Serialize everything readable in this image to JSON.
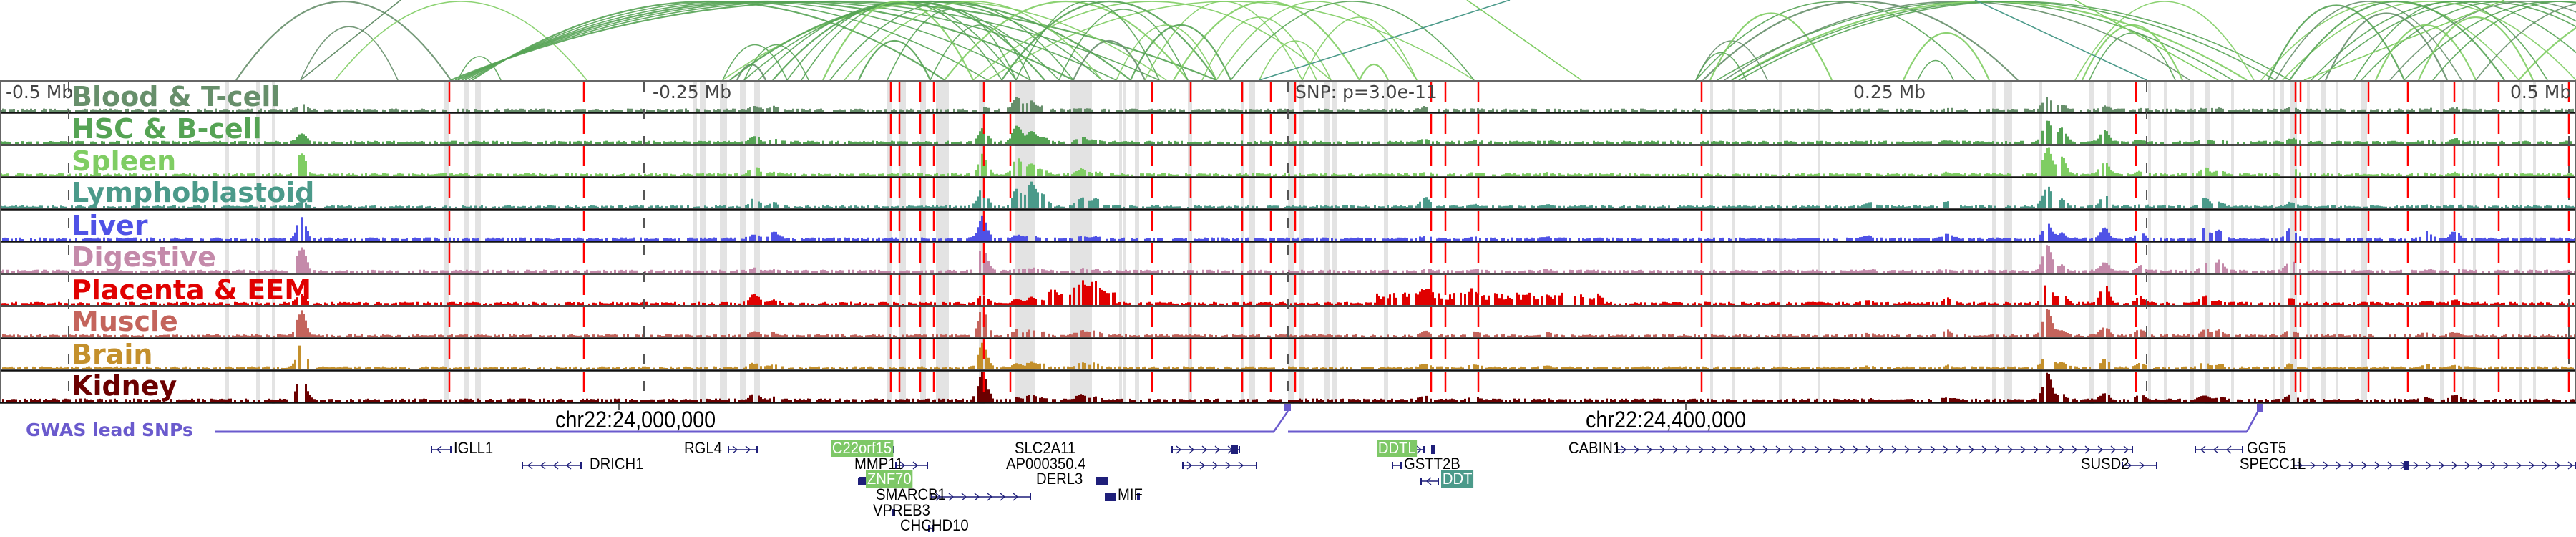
{
  "axis": {
    "left_label": "-0.5 Mb",
    "mid_left_label": "-0.25 Mb",
    "snp_label": "SNP: p=3.0e-11",
    "mid_right_label": "0.25 Mb",
    "right_label": "0.5 Mb"
  },
  "tracks": [
    {
      "label": "Blood & T-cell",
      "color": "#678f6b"
    },
    {
      "label": "HSC & B-cell",
      "color": "#55a354"
    },
    {
      "label": "Spleen",
      "color": "#7fcd63"
    },
    {
      "label": "Lymphoblastoid",
      "color": "#4b9a8a"
    },
    {
      "label": "Liver",
      "color": "#4f52e6"
    },
    {
      "label": "Digestive",
      "color": "#c48aaa"
    },
    {
      "label": "Placenta & EEM",
      "color": "#e00000"
    },
    {
      "label": "Muscle",
      "color": "#c4645c"
    },
    {
      "label": "Brain",
      "color": "#c4902c"
    },
    {
      "label": "Kidney",
      "color": "#6b0000"
    }
  ],
  "gwas": {
    "label": "GWAS lead SNPs",
    "color": "#6a5acd",
    "chr_left": "chr22:24,000,000",
    "chr_right": "chr22:24,400,000"
  },
  "genes": [
    {
      "name": "IGLL1",
      "highlight": "none"
    },
    {
      "name": "DRICH1",
      "highlight": "none"
    },
    {
      "name": "RGL4",
      "highlight": "none"
    },
    {
      "name": "C22orf15",
      "highlight": "light"
    },
    {
      "name": "MMP11",
      "highlight": "none"
    },
    {
      "name": "ZNF70",
      "highlight": "light"
    },
    {
      "name": "SMARCB1",
      "highlight": "none"
    },
    {
      "name": "VPREB3",
      "highlight": "none"
    },
    {
      "name": "CHCHD10",
      "highlight": "none"
    },
    {
      "name": "SLC2A11",
      "highlight": "none"
    },
    {
      "name": "AP000350.4",
      "highlight": "none"
    },
    {
      "name": "DERL3",
      "highlight": "none"
    },
    {
      "name": "MIF",
      "highlight": "none"
    },
    {
      "name": "DDTL",
      "highlight": "light"
    },
    {
      "name": "GSTT2B",
      "highlight": "none"
    },
    {
      "name": "DDT",
      "highlight": "teal"
    },
    {
      "name": "CABIN1",
      "highlight": "none"
    },
    {
      "name": "SUSD2",
      "highlight": "none"
    },
    {
      "name": "GGT5",
      "highlight": "none"
    },
    {
      "name": "SPECC1L",
      "highlight": "none"
    }
  ],
  "colors": {
    "snp_marker": "#ff0000",
    "highlight_band": "#e3e3e3",
    "gene_glyph": "#1f1f7a",
    "arc_dark": "#678f6b",
    "arc_mid": "#55a354",
    "arc_light": "#7fcd63",
    "arc_teal": "#4b9a8a"
  }
}
